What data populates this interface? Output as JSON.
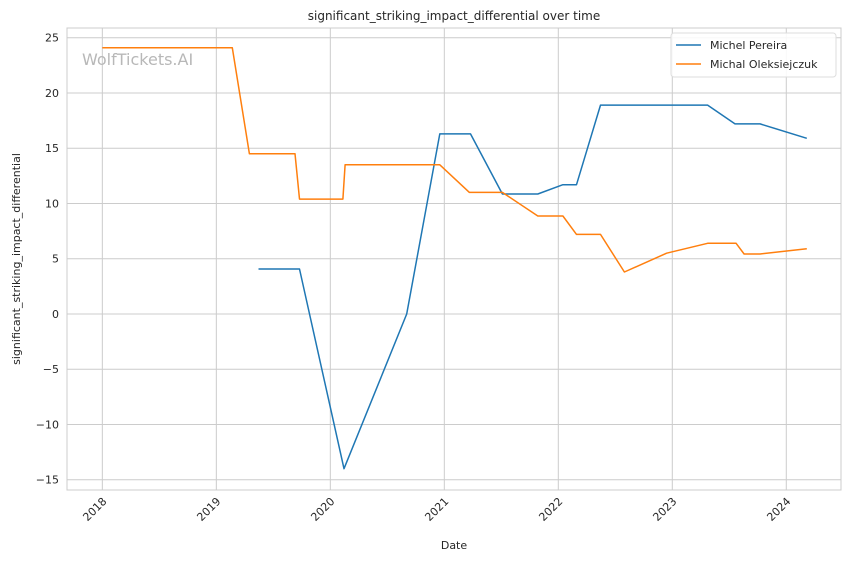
{
  "chart_data": {
    "type": "line",
    "title": "significant_striking_impact_differential over time",
    "xlabel": "Date",
    "ylabel": "significant_striking_impact_differential",
    "watermark": "WolfTickets.AI",
    "xlim": [
      2017.69,
      2024.48
    ],
    "ylim": [
      -15.93,
      25.88
    ],
    "xticks": [
      2018,
      2019,
      2020,
      2021,
      2022,
      2023,
      2024
    ],
    "xtick_labels": [
      "2018",
      "2019",
      "2020",
      "2021",
      "2022",
      "2023",
      "2024"
    ],
    "yticks": [
      -15,
      -10,
      -5,
      0,
      5,
      10,
      15,
      20,
      25
    ],
    "ytick_labels": [
      "−15",
      "−10",
      "−5",
      "0",
      "5",
      "10",
      "15",
      "20",
      "25"
    ],
    "grid": true,
    "legend_position": "top-right",
    "series": [
      {
        "name": "Michel Pereira",
        "color": "#1f77b4",
        "x": [
          2019.37,
          2019.73,
          2020.12,
          2020.67,
          2020.96,
          2021.23,
          2021.51,
          2021.82,
          2022.04,
          2022.16,
          2022.37,
          2023.31,
          2023.55,
          2023.77,
          2024.18
        ],
        "y": [
          4.07,
          4.07,
          -14.0,
          0,
          16.3,
          16.3,
          10.86,
          10.86,
          11.7,
          11.7,
          18.9,
          18.9,
          17.2,
          17.2,
          15.9
        ]
      },
      {
        "name": "Michal Oleksiejczuk",
        "color": "#ff7f0e",
        "x": [
          2018.0,
          2019.14,
          2019.29,
          2019.69,
          2019.73,
          2020.11,
          2020.13,
          2020.96,
          2021.22,
          2021.51,
          2021.82,
          2022.04,
          2022.16,
          2022.37,
          2022.58,
          2022.95,
          2023.31,
          2023.56,
          2023.63,
          2023.77,
          2024.18
        ],
        "y": [
          24.1,
          24.1,
          14.5,
          14.5,
          10.4,
          10.4,
          13.5,
          13.5,
          11.0,
          11.0,
          8.87,
          8.87,
          7.2,
          7.2,
          3.8,
          5.5,
          6.4,
          6.4,
          5.43,
          5.43,
          5.9
        ]
      }
    ]
  }
}
